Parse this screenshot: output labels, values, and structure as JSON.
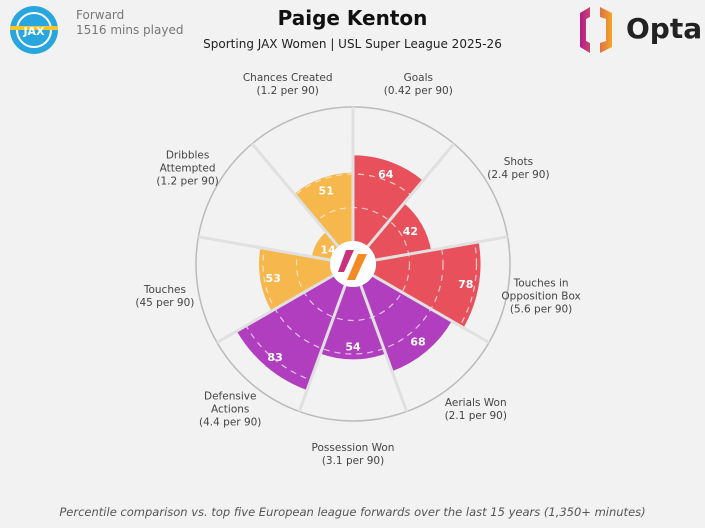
{
  "header": {
    "player": "Paige Kenton",
    "subtitle": "Sporting JAX Women | USL Super League 2025-26",
    "position": "Forward",
    "minutes": "1516 mins played",
    "brand": "Opta"
  },
  "footer": "Percentile comparison vs. top five European league forwards over the last 15 years (1,350+ minutes)",
  "colors": {
    "attacking": "#e8515c",
    "defending": "#b03ebe",
    "possession": "#f6b74c",
    "background": "#f2f2f2"
  },
  "chart_data": {
    "type": "pizza",
    "range": [
      0,
      100
    ],
    "categories": [
      {
        "name": "Goals",
        "per90": "(0.42 per 90)",
        "value": 64,
        "group": "attacking"
      },
      {
        "name": "Shots",
        "per90": "(2.4 per 90)",
        "value": 42,
        "group": "attacking"
      },
      {
        "name": "Touches in Opposition Box",
        "per90": "(5.6 per 90)",
        "value": 78,
        "group": "attacking"
      },
      {
        "name": "Aerials Won",
        "per90": "(2.1 per 90)",
        "value": 68,
        "group": "defending"
      },
      {
        "name": "Possession Won",
        "per90": "(3.1 per 90)",
        "value": 54,
        "group": "defending"
      },
      {
        "name": "Defensive Actions",
        "per90": "(4.4 per 90)",
        "value": 83,
        "group": "defending"
      },
      {
        "name": "Touches",
        "per90": "(45 per 90)",
        "value": 53,
        "group": "possession"
      },
      {
        "name": "Dribbles Attempted",
        "per90": "(1.2 per 90)",
        "value": 14,
        "group": "possession"
      },
      {
        "name": "Chances Created",
        "per90": "(1.2 per 90)",
        "value": 51,
        "group": "possession"
      }
    ]
  }
}
